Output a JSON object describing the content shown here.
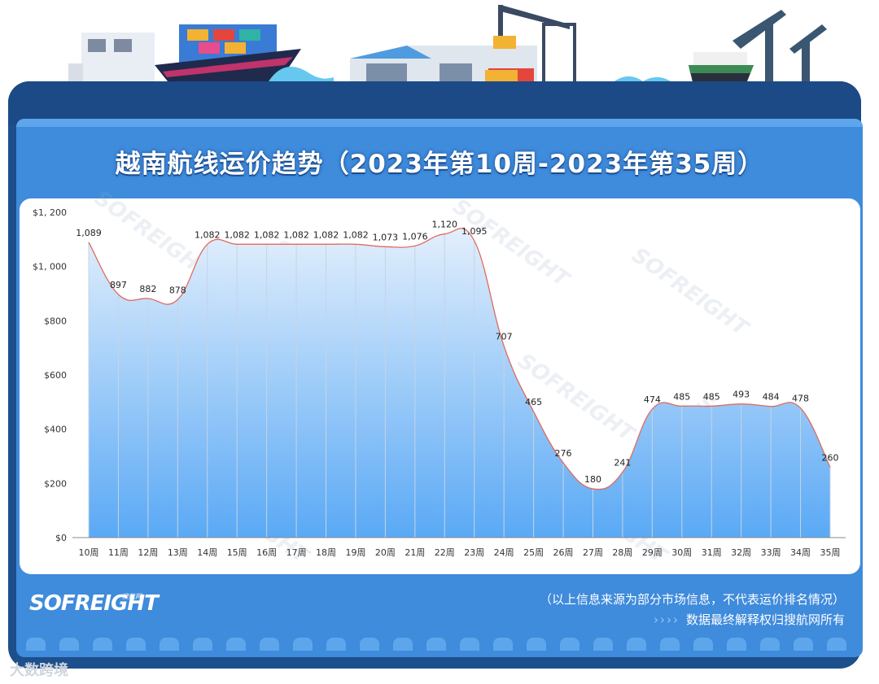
{
  "title": "越南航线运价趋势（2023年第10周-2023年第35周）",
  "brand": "SOFREIGHT",
  "brand_sub": "搜航网",
  "footer": {
    "note1": "（以上信息来源为部分市场信息，不代表运价排名情况）",
    "arrows": "››››",
    "note2": "数据最终解释权归搜航网所有"
  },
  "watermark_text": "SOFREIGHT",
  "bottom_watermark": "大数跨境",
  "colors": {
    "frame": "#1d4f8c",
    "panel": "#3f8bdc",
    "line": "#e06a5e",
    "area_top": "#dbeafb",
    "area_bottom": "#5aa9f5"
  },
  "chart_data": {
    "type": "area",
    "title": "越南航线运价趋势（2023年第10周-2023年第35周）",
    "categories": [
      "10周",
      "11周",
      "12周",
      "13周",
      "14周",
      "15周",
      "16周",
      "17周",
      "18周",
      "19周",
      "20周",
      "21周",
      "22周",
      "23周",
      "24周",
      "25周",
      "26周",
      "27周",
      "28周",
      "29周",
      "30周",
      "31周",
      "32周",
      "33周",
      "34周",
      "35周"
    ],
    "values": [
      1089,
      897,
      882,
      878,
      1082,
      1082,
      1082,
      1082,
      1082,
      1082,
      1073,
      1076,
      1120,
      1095,
      707,
      465,
      276,
      180,
      241,
      474,
      485,
      485,
      493,
      484,
      478,
      260
    ],
    "data_labels": [
      "1,089",
      "897",
      "882",
      "878",
      "1,082",
      "1,082",
      "1,082",
      "1,082",
      "1,082",
      "1,082",
      "1,073",
      "1,076",
      "1,120",
      "1,095",
      "707",
      "465",
      "276",
      "180",
      "241",
      "474",
      "485",
      "485",
      "493",
      "484",
      "478",
      "260"
    ],
    "y_ticks": [
      0,
      200,
      400,
      600,
      800,
      1000,
      1200
    ],
    "y_tick_labels": [
      "$0",
      "$200",
      "$400",
      "$600",
      "$800",
      "$1, 000",
      "$1, 200"
    ],
    "ylim": [
      0,
      1200
    ],
    "grid": "vertical",
    "legend": "none"
  }
}
